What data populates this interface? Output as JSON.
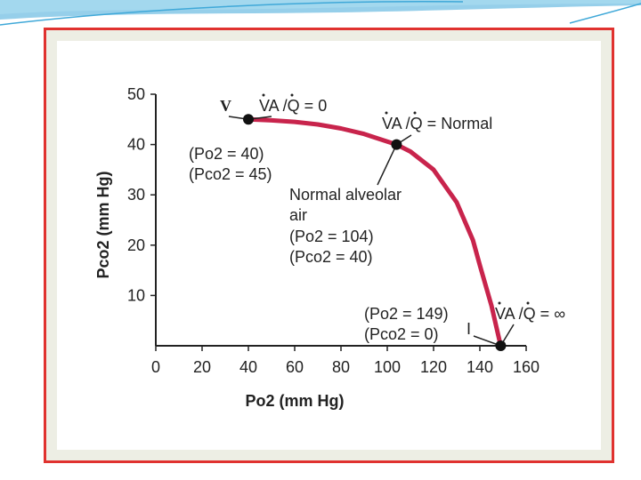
{
  "colors": {
    "curve": "#c8244c",
    "frame": "#e0322f",
    "frame_fill": "#edeee4",
    "deco_blue": "#3fa8d8"
  },
  "chart_data": {
    "type": "line",
    "xlabel": "Po2 (mm Hg)",
    "ylabel": "Pco2 (mm Hg)",
    "xlim": [
      0,
      160
    ],
    "ylim": [
      0,
      50
    ],
    "x_ticks": [
      0,
      20,
      40,
      60,
      80,
      100,
      120,
      140,
      160
    ],
    "y_ticks": [
      10,
      20,
      30,
      40,
      50
    ],
    "grid": false,
    "series": [
      {
        "x": [
          40,
          50,
          60,
          70,
          80,
          90,
          100,
          104,
          110,
          120,
          130,
          137,
          140,
          145,
          149
        ],
        "y": [
          45,
          44.8,
          44.5,
          44,
          43.2,
          42.1,
          40.6,
          40,
          38.6,
          35,
          28.5,
          21,
          16,
          8,
          0
        ]
      }
    ],
    "points": [
      {
        "id": "v",
        "x": 40,
        "y": 45
      },
      {
        "id": "normal",
        "x": 104,
        "y": 40
      },
      {
        "id": "i",
        "x": 149,
        "y": 0
      }
    ],
    "annotations": {
      "v_label": "V",
      "va_q_zero": "VA /Q = 0",
      "va_q_normal": "VA /Q = Normal",
      "va_q_inf": "VA /Q = ∞",
      "v_po2": "(Po2 = 40)",
      "v_pco2": "(Pco2 = 45)",
      "normal_line1": "Normal alveolar",
      "normal_line2": "air",
      "normal_po2": "(Po2 = 104)",
      "normal_pco2": "(Pco2 = 40)",
      "i_po2": "(Po2 = 149)",
      "i_pco2": "(Pco2 = 0)",
      "i_label": "I"
    }
  }
}
